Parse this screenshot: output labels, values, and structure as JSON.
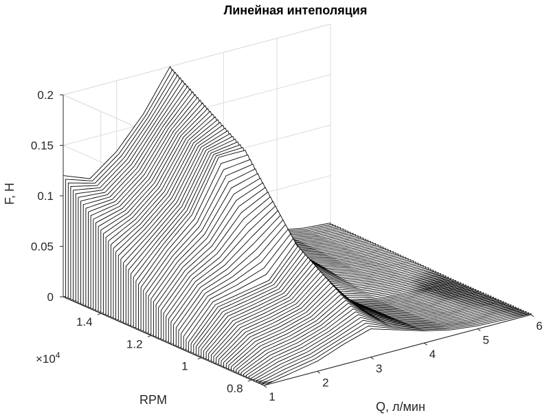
{
  "chart_data": {
    "type": "surface",
    "title": "Линейная интеполяция",
    "xlabel": "Q, л/мин",
    "ylabel": "RPM",
    "zlabel": "F, Н",
    "x_ticks": [
      "1",
      "2",
      "3",
      "4",
      "5",
      "6"
    ],
    "y_ticks": [
      "0.8",
      "1",
      "1.2",
      "1.4"
    ],
    "y_exponent": "×10^4",
    "z_ticks": [
      "0",
      "0.05",
      "0.1",
      "0.15",
      "0.2"
    ],
    "xlim": [
      1,
      6
    ],
    "ylim": [
      7500,
      15500
    ],
    "zlim": [
      0,
      0.2
    ],
    "grid": true,
    "colormap": "white faces, black edges",
    "rpm_knots": [
      7500,
      10500,
      12500,
      15500
    ],
    "x": [
      1,
      1.5,
      2,
      2.5,
      3,
      3.5,
      4,
      4.5,
      5,
      5.5,
      6
    ],
    "profiles": [
      {
        "rpm": 7500,
        "F": [
          0.0,
          0.005,
          0.01,
          0.02,
          0.028,
          0.02,
          0.012,
          0.006,
          0.003,
          0.002,
          0.001
        ]
      },
      {
        "rpm": 10500,
        "F": [
          0.01,
          0.04,
          0.045,
          0.05,
          0.08,
          0.03,
          0.01,
          0.004,
          0.002,
          0.001,
          0.001
        ]
      },
      {
        "rpm": 12500,
        "F": [
          0.045,
          0.075,
          0.1,
          0.15,
          0.15,
          0.07,
          0.03,
          0.012,
          0.006,
          0.003,
          0.002
        ]
      },
      {
        "rpm": 15500,
        "F": [
          0.12,
          0.11,
          0.13,
          0.16,
          0.2,
          0.14,
          0.06,
          0.022,
          0.01,
          0.005,
          0.003
        ]
      }
    ]
  }
}
